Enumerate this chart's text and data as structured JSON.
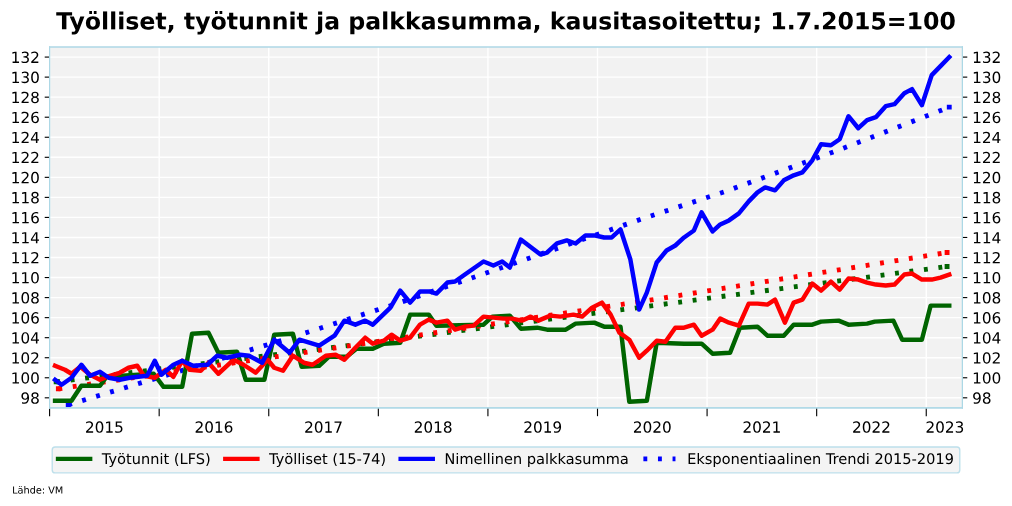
{
  "chart_data": {
    "type": "line",
    "title": "Työlliset, työtunnit ja palkkasumma, kausitasoitettu; 1.7.2015=100",
    "annotations": [
      "Lähde: VM"
    ],
    "xlim": [
      2015.0,
      2023.33
    ],
    "xticks": [
      {
        "value": 2015.0,
        "label": null
      },
      {
        "value": 2015.5,
        "label": "2015"
      },
      {
        "value": 2016.0,
        "label": null
      },
      {
        "value": 2016.5,
        "label": "2016"
      },
      {
        "value": 2017.0,
        "label": null
      },
      {
        "value": 2017.5,
        "label": "2017"
      },
      {
        "value": 2018.0,
        "label": null
      },
      {
        "value": 2018.5,
        "label": "2018"
      },
      {
        "value": 2019.0,
        "label": null
      },
      {
        "value": 2019.5,
        "label": "2019"
      },
      {
        "value": 2020.0,
        "label": null
      },
      {
        "value": 2020.5,
        "label": "2020"
      },
      {
        "value": 2021.0,
        "label": null
      },
      {
        "value": 2021.5,
        "label": "2021"
      },
      {
        "value": 2022.0,
        "label": null
      },
      {
        "value": 2022.5,
        "label": "2022"
      },
      {
        "value": 2023.0,
        "label": null
      },
      {
        "value": 2023.17,
        "label": "2023"
      }
    ],
    "ylim": [
      97,
      133
    ],
    "yticks": [
      98,
      100,
      102,
      104,
      106,
      108,
      110,
      112,
      114,
      116,
      118,
      120,
      122,
      124,
      126,
      128,
      130,
      132
    ],
    "y2lim": [
      97,
      133
    ],
    "y2ticks": [
      98,
      100,
      102,
      104,
      106,
      108,
      110,
      112,
      114,
      116,
      118,
      120,
      122,
      124,
      126,
      128,
      130,
      132
    ],
    "grid": true,
    "legend": "bottom",
    "series": [
      {
        "name": "Työtunnit (LFS)",
        "color": "#006400",
        "line_style": "solid",
        "x": [
          2015.05,
          2015.2,
          2015.29,
          2015.46,
          2015.52,
          2015.95,
          2016.04,
          2016.21,
          2016.3,
          2016.45,
          2016.54,
          2016.71,
          2016.79,
          2016.96,
          2017.05,
          2017.22,
          2017.3,
          2017.46,
          2017.55,
          2017.71,
          2017.8,
          2017.95,
          2018.05,
          2018.2,
          2018.29,
          2018.46,
          2018.53,
          2018.96,
          2019.04,
          2019.2,
          2019.3,
          2019.45,
          2019.54,
          2019.71,
          2019.8,
          2019.97,
          2020.06,
          2020.21,
          2020.29,
          2020.45,
          2020.54,
          2020.79,
          2020.95,
          2021.05,
          2021.21,
          2021.3,
          2021.46,
          2021.55,
          2021.7,
          2021.79,
          2021.96,
          2022.04,
          2022.2,
          2022.29,
          2022.46,
          2022.53,
          2022.7,
          2022.78,
          2022.96,
          2023.04,
          2023.21
        ],
        "values": [
          97.7,
          97.7,
          99.2,
          99.2,
          100.1,
          100.4,
          99.1,
          99.1,
          104.4,
          104.5,
          102.5,
          102.6,
          99.8,
          99.8,
          104.3,
          104.4,
          101.1,
          101.2,
          102.1,
          102.1,
          102.9,
          102.9,
          103.4,
          103.5,
          106.3,
          106.3,
          105.2,
          105.3,
          106.1,
          106.2,
          104.9,
          105.0,
          104.8,
          104.8,
          105.4,
          105.5,
          105.1,
          105.1,
          97.6,
          97.7,
          103.5,
          103.4,
          103.4,
          102.4,
          102.5,
          105.0,
          105.1,
          104.2,
          104.2,
          105.3,
          105.3,
          105.6,
          105.7,
          105.3,
          105.4,
          105.6,
          105.7,
          103.8,
          103.8,
          107.2,
          107.2
        ]
      },
      {
        "name": "Työlliset (15-74)",
        "color": "#ff0000",
        "line_style": "solid",
        "x": [
          2015.05,
          2015.14,
          2015.2,
          2015.28,
          2015.37,
          2015.46,
          2015.55,
          2015.64,
          2015.72,
          2015.8,
          2015.86,
          2015.96,
          2016.06,
          2016.13,
          2016.21,
          2016.28,
          2016.38,
          2016.45,
          2016.54,
          2016.68,
          2016.77,
          2016.88,
          2016.99,
          2017.05,
          2017.13,
          2017.22,
          2017.32,
          2017.4,
          2017.52,
          2017.61,
          2017.69,
          2017.79,
          2017.88,
          2017.95,
          2018.05,
          2018.12,
          2018.2,
          2018.29,
          2018.38,
          2018.46,
          2018.53,
          2018.63,
          2018.7,
          2018.79,
          2018.87,
          2018.96,
          2019.05,
          2019.14,
          2019.22,
          2019.31,
          2019.39,
          2019.46,
          2019.57,
          2019.66,
          2019.78,
          2019.86,
          2019.95,
          2020.04,
          2020.12,
          2020.2,
          2020.29,
          2020.38,
          2020.45,
          2020.54,
          2020.62,
          2020.71,
          2020.79,
          2020.88,
          2020.95,
          2021.05,
          2021.12,
          2021.2,
          2021.29,
          2021.38,
          2021.46,
          2021.55,
          2021.62,
          2021.71,
          2021.79,
          2021.87,
          2021.96,
          2022.04,
          2022.13,
          2022.21,
          2022.29,
          2022.38,
          2022.46,
          2022.54,
          2022.63,
          2022.71,
          2022.8,
          2022.87,
          2022.96,
          2023.05,
          2023.13,
          2023.21
        ],
        "values": [
          101.2,
          100.8,
          100.4,
          101.1,
          100.3,
          99.8,
          100.2,
          100.5,
          101.0,
          101.2,
          100.2,
          100.0,
          100.8,
          100.1,
          101.7,
          100.8,
          100.7,
          101.5,
          100.4,
          101.8,
          101.3,
          100.5,
          101.8,
          101.0,
          100.7,
          102.2,
          101.5,
          101.3,
          102.2,
          102.3,
          101.8,
          103.0,
          104.0,
          103.4,
          103.7,
          104.3,
          103.7,
          104.0,
          105.3,
          105.8,
          105.5,
          105.7,
          104.8,
          105.1,
          105.2,
          106.1,
          106.0,
          105.9,
          105.9,
          105.7,
          106.1,
          105.7,
          106.2,
          106.1,
          106.3,
          106.1,
          107.0,
          107.5,
          106.3,
          104.5,
          103.8,
          102.0,
          102.7,
          103.7,
          103.6,
          105.0,
          105.0,
          105.3,
          104.2,
          104.8,
          105.9,
          105.5,
          105.2,
          107.4,
          107.4,
          107.3,
          107.8,
          105.5,
          107.5,
          107.8,
          109.4,
          108.7,
          109.6,
          108.8,
          109.9,
          109.8,
          109.5,
          109.3,
          109.2,
          109.3,
          110.3,
          110.4,
          109.8,
          109.8,
          110.0,
          110.3
        ]
      },
      {
        "name": "Nimellinen palkkasumma",
        "color": "#0000ff",
        "line_style": "solid",
        "x": [
          2015.05,
          2015.11,
          2015.2,
          2015.29,
          2015.37,
          2015.46,
          2015.54,
          2015.64,
          2015.73,
          2015.89,
          2015.96,
          2016.02,
          2016.13,
          2016.21,
          2016.31,
          2016.44,
          2016.53,
          2016.62,
          2016.74,
          2016.82,
          2016.94,
          2017.05,
          2017.19,
          2017.28,
          2017.46,
          2017.6,
          2017.69,
          2017.79,
          2017.88,
          2017.95,
          2018.11,
          2018.2,
          2018.29,
          2018.38,
          2018.47,
          2018.53,
          2018.63,
          2018.7,
          2018.79,
          2018.96,
          2019.05,
          2019.13,
          2019.2,
          2019.3,
          2019.48,
          2019.54,
          2019.63,
          2019.72,
          2019.8,
          2019.89,
          2019.98,
          2020.06,
          2020.13,
          2020.21,
          2020.3,
          2020.38,
          2020.45,
          2020.54,
          2020.63,
          2020.71,
          2020.79,
          2020.88,
          2020.95,
          2021.05,
          2021.12,
          2021.2,
          2021.29,
          2021.38,
          2021.46,
          2021.53,
          2021.62,
          2021.7,
          2021.79,
          2021.87,
          2021.96,
          2022.04,
          2022.13,
          2022.21,
          2022.29,
          2022.38,
          2022.46,
          2022.54,
          2022.63,
          2022.71,
          2022.8,
          2022.87,
          2022.96,
          2023.05,
          2023.13,
          2023.21
        ],
        "values": [
          99.8,
          99.3,
          100.0,
          101.3,
          100.2,
          100.6,
          100.0,
          99.8,
          100.0,
          100.2,
          101.7,
          100.3,
          101.3,
          101.7,
          101.2,
          101.3,
          102.2,
          102.0,
          102.3,
          102.2,
          101.5,
          103.8,
          102.5,
          103.8,
          103.2,
          104.2,
          105.7,
          105.3,
          105.7,
          105.3,
          107.0,
          108.7,
          107.5,
          108.6,
          108.6,
          108.4,
          109.5,
          109.6,
          110.3,
          111.6,
          111.2,
          111.6,
          111.0,
          113.8,
          112.3,
          112.5,
          113.4,
          113.7,
          113.4,
          114.2,
          114.2,
          114.0,
          114.0,
          114.8,
          111.8,
          106.8,
          108.5,
          111.5,
          112.7,
          113.2,
          114.0,
          114.7,
          116.5,
          114.6,
          115.3,
          115.7,
          116.4,
          117.6,
          118.5,
          119.0,
          118.7,
          119.7,
          120.2,
          120.5,
          121.7,
          123.3,
          123.2,
          123.8,
          126.1,
          124.9,
          125.7,
          126.0,
          127.1,
          127.3,
          128.4,
          128.8,
          127.2,
          130.2,
          131.1,
          132.0
        ]
      },
      {
        "color": "#006400",
        "line_style": "dotted",
        "x": [
          2015.06,
          2017.5,
          2020.44,
          2023.19
        ],
        "values": [
          99.6,
          102.9,
          107.1,
          111.1
        ]
      },
      {
        "color": "#ff0000",
        "line_style": "dotted",
        "x": [
          2015.08,
          2017.5,
          2020.45,
          2023.19
        ],
        "values": [
          98.9,
          102.8,
          107.7,
          112.5
        ]
      },
      {
        "name": "Eksponentiaalinen Trendi 2015-2019",
        "color": "#0000ff",
        "line_style": "dotted",
        "x": [
          2015.17,
          2016.17,
          2017.17,
          2018.17,
          2019.34,
          2020.39,
          2021.17,
          2022.17,
          2023.21
        ],
        "values": [
          97.3,
          100.6,
          103.9,
          107.4,
          111.8,
          115.8,
          118.6,
          122.6,
          127.0
        ]
      }
    ]
  }
}
